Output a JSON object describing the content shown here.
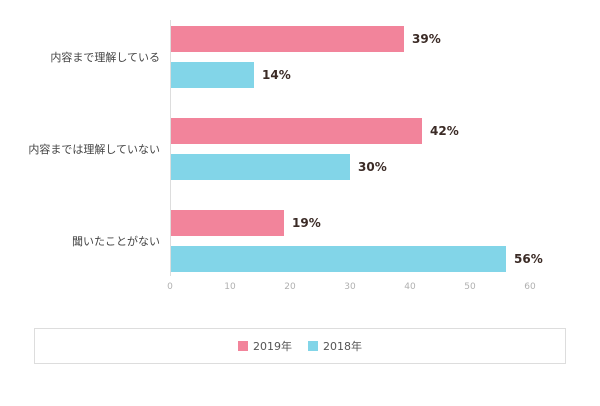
{
  "chart_data": {
    "type": "bar",
    "orientation": "horizontal",
    "title": "",
    "xlabel": "",
    "ylabel": "",
    "unit": "%",
    "xlim": [
      0,
      60
    ],
    "x_ticks": [
      0,
      10,
      20,
      30,
      40,
      50,
      60
    ],
    "grid": false,
    "legend_position": "bottom",
    "categories": [
      "内容まで理解している",
      "内容までは理解していない",
      "聞いたことがない"
    ],
    "series": [
      {
        "name": "2019年",
        "key": "series-2019",
        "color": "#f2849b",
        "values": [
          39,
          42,
          19
        ]
      },
      {
        "name": "2018年",
        "key": "series-2018",
        "color": "#82d5e8",
        "values": [
          14,
          30,
          56
        ]
      }
    ]
  },
  "colors": {
    "series_2019": "#f2849b",
    "series_2018": "#82d5e8",
    "value_label": "#3b2b26",
    "axis_text": "#b0b0b0",
    "category_text": "#444444",
    "legend_border": "#dddddd",
    "axis_line": "#dddddd",
    "background": "#ffffff"
  }
}
